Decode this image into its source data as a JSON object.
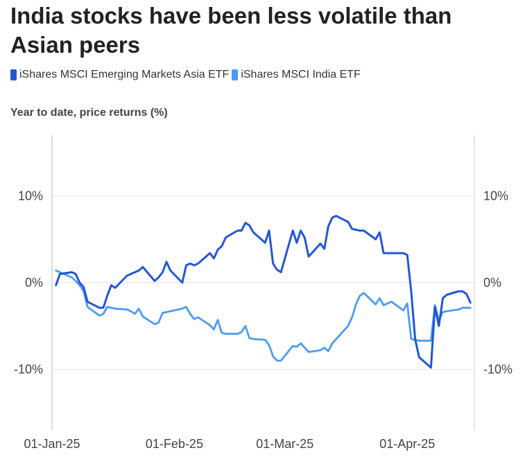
{
  "title": "India stocks have been less volatile than Asian peers",
  "subtitle": "Year to date, price returns (%)",
  "colors": {
    "asia": "#2356d6",
    "india": "#4b9cf0",
    "grid": "#e6e6e6",
    "axis": "#cfcfcf"
  },
  "chart_data": {
    "type": "line",
    "title": "India stocks have been less volatile than Asian peers",
    "ylabel": "Year to date, price returns (%)",
    "xlabel": "",
    "ylim": [
      -17,
      17
    ],
    "xlim": [
      "2025-01-01",
      "2025-04-18"
    ],
    "grid": true,
    "legend": "top-left",
    "y_ticks": [
      10,
      0,
      -10
    ],
    "y_tick_labels": [
      "10%",
      "0%",
      "-10%"
    ],
    "x_ticks": [
      "2025-01-01",
      "2025-02-01",
      "2025-03-01",
      "2025-04-01"
    ],
    "x_tick_labels": [
      "01-Jan-25",
      "01-Feb-25",
      "01-Mar-25",
      "01-Apr-25"
    ],
    "series": [
      {
        "name": "iShares MSCI Emerging Markets Asia ETF",
        "color": "#2356d6",
        "points": [
          [
            "2025-01-02",
            -0.3
          ],
          [
            "2025-01-03",
            1.0
          ],
          [
            "2025-01-06",
            1.2
          ],
          [
            "2025-01-07",
            1.0
          ],
          [
            "2025-01-08",
            0.0
          ],
          [
            "2025-01-09",
            -0.5
          ],
          [
            "2025-01-10",
            -2.2
          ],
          [
            "2025-01-13",
            -2.9
          ],
          [
            "2025-01-14",
            -2.9
          ],
          [
            "2025-01-15",
            -1.5
          ],
          [
            "2025-01-16",
            -0.3
          ],
          [
            "2025-01-17",
            -0.6
          ],
          [
            "2025-01-20",
            0.8
          ],
          [
            "2025-01-21",
            1.0
          ],
          [
            "2025-01-22",
            1.2
          ],
          [
            "2025-01-23",
            1.4
          ],
          [
            "2025-01-24",
            1.8
          ],
          [
            "2025-01-27",
            0.2
          ],
          [
            "2025-01-28",
            0.6
          ],
          [
            "2025-01-29",
            1.2
          ],
          [
            "2025-01-30",
            2.4
          ],
          [
            "2025-01-31",
            1.4
          ],
          [
            "2025-02-03",
            0.0
          ],
          [
            "2025-02-04",
            2.0
          ],
          [
            "2025-02-05",
            2.2
          ],
          [
            "2025-02-06",
            2.0
          ],
          [
            "2025-02-07",
            2.2
          ],
          [
            "2025-02-10",
            3.4
          ],
          [
            "2025-02-11",
            2.8
          ],
          [
            "2025-02-12",
            3.8
          ],
          [
            "2025-02-13",
            4.2
          ],
          [
            "2025-02-14",
            5.2
          ],
          [
            "2025-02-17",
            6.0
          ],
          [
            "2025-02-18",
            6.0
          ],
          [
            "2025-02-19",
            6.9
          ],
          [
            "2025-02-20",
            6.6
          ],
          [
            "2025-02-21",
            5.8
          ],
          [
            "2025-02-24",
            4.6
          ],
          [
            "2025-02-25",
            6.0
          ],
          [
            "2025-02-26",
            2.2
          ],
          [
            "2025-02-27",
            1.5
          ],
          [
            "2025-02-28",
            1.2
          ],
          [
            "2025-03-03",
            6.0
          ],
          [
            "2025-03-04",
            4.6
          ],
          [
            "2025-03-05",
            6.0
          ],
          [
            "2025-03-06",
            5.2
          ],
          [
            "2025-03-07",
            3.0
          ],
          [
            "2025-03-10",
            4.5
          ],
          [
            "2025-03-11",
            3.9
          ],
          [
            "2025-03-12",
            6.5
          ],
          [
            "2025-03-13",
            7.5
          ],
          [
            "2025-03-14",
            7.7
          ],
          [
            "2025-03-17",
            7.0
          ],
          [
            "2025-03-18",
            6.2
          ],
          [
            "2025-03-19",
            6.1
          ],
          [
            "2025-03-20",
            6.0
          ],
          [
            "2025-03-21",
            6.0
          ],
          [
            "2025-03-24",
            5.0
          ],
          [
            "2025-03-25",
            5.8
          ],
          [
            "2025-03-26",
            3.4
          ],
          [
            "2025-03-27",
            3.4
          ],
          [
            "2025-03-28",
            3.4
          ],
          [
            "2025-03-31",
            3.4
          ],
          [
            "2025-04-01",
            3.2
          ],
          [
            "2025-04-02",
            -1.0
          ],
          [
            "2025-04-03",
            -6.5
          ],
          [
            "2025-04-04",
            -8.6
          ],
          [
            "2025-04-07",
            -9.8
          ],
          [
            "2025-04-08",
            -2.8
          ],
          [
            "2025-04-09",
            -5.0
          ],
          [
            "2025-04-10",
            -1.8
          ],
          [
            "2025-04-11",
            -1.4
          ],
          [
            "2025-04-14",
            -1.0
          ],
          [
            "2025-04-15",
            -1.0
          ],
          [
            "2025-04-16",
            -1.3
          ],
          [
            "2025-04-17",
            -2.3
          ]
        ]
      },
      {
        "name": "iShares MSCI India ETF",
        "color": "#4b9cf0",
        "points": [
          [
            "2025-01-02",
            1.4
          ],
          [
            "2025-01-03",
            1.2
          ],
          [
            "2025-01-06",
            0.6
          ],
          [
            "2025-01-07",
            0.2
          ],
          [
            "2025-01-08",
            -0.3
          ],
          [
            "2025-01-09",
            -1.0
          ],
          [
            "2025-01-10",
            -2.8
          ],
          [
            "2025-01-13",
            -3.8
          ],
          [
            "2025-01-14",
            -3.6
          ],
          [
            "2025-01-15",
            -2.8
          ],
          [
            "2025-01-16",
            -2.9
          ],
          [
            "2025-01-17",
            -3.0
          ],
          [
            "2025-01-20",
            -3.1
          ],
          [
            "2025-01-21",
            -3.3
          ],
          [
            "2025-01-22",
            -3.6
          ],
          [
            "2025-01-23",
            -3.0
          ],
          [
            "2025-01-24",
            -3.9
          ],
          [
            "2025-01-27",
            -4.8
          ],
          [
            "2025-01-28",
            -4.6
          ],
          [
            "2025-01-29",
            -3.5
          ],
          [
            "2025-01-30",
            -3.4
          ],
          [
            "2025-01-31",
            -3.3
          ],
          [
            "2025-02-03",
            -3.0
          ],
          [
            "2025-02-04",
            -2.8
          ],
          [
            "2025-02-05",
            -3.6
          ],
          [
            "2025-02-06",
            -4.2
          ],
          [
            "2025-02-07",
            -4.0
          ],
          [
            "2025-02-10",
            -4.9
          ],
          [
            "2025-02-11",
            -5.4
          ],
          [
            "2025-02-12",
            -4.3
          ],
          [
            "2025-02-13",
            -5.8
          ],
          [
            "2025-02-14",
            -5.9
          ],
          [
            "2025-02-17",
            -5.9
          ],
          [
            "2025-02-18",
            -5.7
          ],
          [
            "2025-02-19",
            -5.0
          ],
          [
            "2025-02-20",
            -6.4
          ],
          [
            "2025-02-21",
            -6.5
          ],
          [
            "2025-02-24",
            -6.6
          ],
          [
            "2025-02-25",
            -7.2
          ],
          [
            "2025-02-26",
            -8.5
          ],
          [
            "2025-02-27",
            -9.0
          ],
          [
            "2025-02-28",
            -9.0
          ],
          [
            "2025-03-03",
            -7.3
          ],
          [
            "2025-03-04",
            -7.4
          ],
          [
            "2025-03-05",
            -7.0
          ],
          [
            "2025-03-06",
            -7.5
          ],
          [
            "2025-03-07",
            -8.0
          ],
          [
            "2025-03-10",
            -7.8
          ],
          [
            "2025-03-11",
            -7.5
          ],
          [
            "2025-03-12",
            -7.9
          ],
          [
            "2025-03-13",
            -7.0
          ],
          [
            "2025-03-14",
            -6.5
          ],
          [
            "2025-03-17",
            -5.0
          ],
          [
            "2025-03-18",
            -4.0
          ],
          [
            "2025-03-19",
            -2.5
          ],
          [
            "2025-03-20",
            -1.5
          ],
          [
            "2025-03-21",
            -1.2
          ],
          [
            "2025-03-24",
            -2.5
          ],
          [
            "2025-03-25",
            -1.8
          ],
          [
            "2025-03-26",
            -2.6
          ],
          [
            "2025-03-27",
            -2.4
          ],
          [
            "2025-03-28",
            -2.2
          ],
          [
            "2025-03-31",
            -3.2
          ],
          [
            "2025-04-01",
            -2.4
          ],
          [
            "2025-04-02",
            -6.5
          ],
          [
            "2025-04-03",
            -6.6
          ],
          [
            "2025-04-04",
            -6.7
          ],
          [
            "2025-04-07",
            -6.7
          ],
          [
            "2025-04-08",
            -2.6
          ],
          [
            "2025-04-09",
            -4.3
          ],
          [
            "2025-04-10",
            -3.4
          ],
          [
            "2025-04-11",
            -3.3
          ],
          [
            "2025-04-14",
            -3.1
          ],
          [
            "2025-04-15",
            -2.9
          ],
          [
            "2025-04-16",
            -2.9
          ],
          [
            "2025-04-17",
            -2.9
          ]
        ]
      }
    ]
  }
}
